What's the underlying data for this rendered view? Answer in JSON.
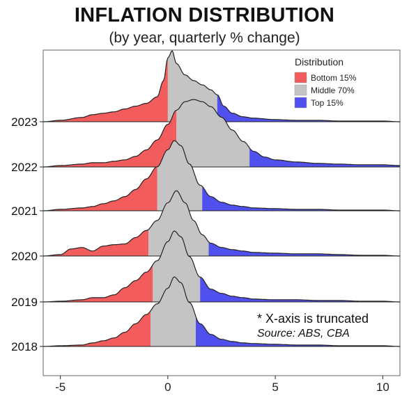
{
  "header": {
    "title": "INFLATION DISTRIBUTION",
    "subtitle": "(by year, quarterly % change)"
  },
  "notes": {
    "truncation": "*  X-axis is truncated",
    "source": "Source: ABS, CBA"
  },
  "colors": {
    "bottom": "#f25c5c",
    "middle": "#c4c4c4",
    "top": "#5050ee",
    "outline": "#222222",
    "frame": "#666666"
  },
  "chart_data": {
    "type": "area",
    "subtype": "ridgeline-density",
    "title": "INFLATION DISTRIBUTION",
    "subtitle": "(by year, quarterly % change)",
    "xlabel": "",
    "ylabel": "",
    "xlim": [
      -5.8,
      10.8
    ],
    "xticks": [
      -5,
      0,
      5,
      10
    ],
    "grid": false,
    "legend": {
      "title": "Distribution",
      "position": "top-right",
      "items": [
        {
          "label": "Bottom 15%",
          "color": "#f25c5c"
        },
        {
          "label": "Middle 70%",
          "color": "#c4c4c4"
        },
        {
          "label": "Top 15%",
          "color": "#5050ee"
        }
      ]
    },
    "series": [
      {
        "name": "2018",
        "bottom_15_cutoff": -0.8,
        "top_15_cutoff": 1.3,
        "x": [
          -5.8,
          -5,
          -4,
          -3.5,
          -3,
          -2.5,
          -2,
          -1.5,
          -1,
          -0.5,
          0,
          0.3,
          0.6,
          1,
          1.5,
          2,
          2.5,
          3,
          3.5,
          4,
          5,
          6,
          7,
          8,
          9,
          10,
          10.8
        ],
        "density": [
          0,
          0.01,
          0.02,
          0.05,
          0.08,
          0.12,
          0.2,
          0.32,
          0.45,
          0.6,
          0.82,
          0.98,
          0.9,
          0.62,
          0.32,
          0.17,
          0.1,
          0.07,
          0.05,
          0.04,
          0.03,
          0.02,
          0.02,
          0.01,
          0.01,
          0.01,
          0
        ]
      },
      {
        "name": "2019",
        "bottom_15_cutoff": -0.7,
        "top_15_cutoff": 1.5,
        "x": [
          -5.8,
          -5,
          -4,
          -3.5,
          -3,
          -2.5,
          -2,
          -1.5,
          -1,
          -0.5,
          0,
          0.3,
          0.6,
          1,
          1.5,
          2,
          2.5,
          3,
          3.5,
          4,
          5,
          6,
          7,
          8,
          9,
          10,
          10.8
        ],
        "density": [
          0,
          0.01,
          0.03,
          0.06,
          0.06,
          0.1,
          0.2,
          0.3,
          0.42,
          0.58,
          0.85,
          1.0,
          0.92,
          0.64,
          0.35,
          0.18,
          0.12,
          0.08,
          0.06,
          0.04,
          0.03,
          0.03,
          0.02,
          0.02,
          0.01,
          0.01,
          0
        ]
      },
      {
        "name": "2020",
        "bottom_15_cutoff": -0.9,
        "top_15_cutoff": 1.9,
        "x": [
          -5.8,
          -5,
          -4.5,
          -4,
          -3.5,
          -3,
          -2.5,
          -2,
          -1.5,
          -1,
          -0.5,
          0,
          0.4,
          0.8,
          1.2,
          1.6,
          2,
          2.5,
          3,
          3.5,
          4,
          5,
          6,
          7,
          8,
          9,
          10,
          10.8
        ],
        "density": [
          0,
          0.02,
          0.1,
          0.12,
          0.07,
          0.14,
          0.16,
          0.17,
          0.26,
          0.36,
          0.5,
          0.75,
          0.92,
          0.75,
          0.5,
          0.3,
          0.18,
          0.12,
          0.09,
          0.07,
          0.05,
          0.04,
          0.03,
          0.03,
          0.02,
          0.01,
          0.01,
          0
        ]
      },
      {
        "name": "2021",
        "bottom_15_cutoff": -0.5,
        "top_15_cutoff": 1.6,
        "x": [
          -5.8,
          -5,
          -4,
          -3.5,
          -3,
          -2.5,
          -2,
          -1.5,
          -1,
          -0.5,
          0,
          0.3,
          0.6,
          1,
          1.5,
          2,
          2.5,
          3,
          3.5,
          4,
          5,
          6,
          7,
          8,
          9,
          10,
          10.8
        ],
        "density": [
          0,
          0.02,
          0.04,
          0.06,
          0.1,
          0.14,
          0.2,
          0.3,
          0.45,
          0.62,
          0.86,
          0.99,
          0.92,
          0.66,
          0.36,
          0.2,
          0.12,
          0.08,
          0.06,
          0.04,
          0.03,
          0.02,
          0.02,
          0.01,
          0.01,
          0.01,
          0
        ]
      },
      {
        "name": "2022",
        "bottom_15_cutoff": 0.4,
        "top_15_cutoff": 3.8,
        "x": [
          -5.8,
          -5,
          -4,
          -3.5,
          -3,
          -2.5,
          -2,
          -1.5,
          -1,
          -0.5,
          0,
          0.4,
          0.8,
          1.2,
          1.6,
          2,
          2.5,
          3,
          3.5,
          4,
          4.5,
          5,
          6,
          7,
          8,
          9,
          10,
          10.8
        ],
        "density": [
          0,
          0.02,
          0.04,
          0.06,
          0.06,
          0.08,
          0.1,
          0.15,
          0.24,
          0.38,
          0.6,
          0.8,
          0.92,
          0.95,
          0.92,
          0.85,
          0.7,
          0.52,
          0.36,
          0.22,
          0.14,
          0.1,
          0.07,
          0.05,
          0.04,
          0.03,
          0.03,
          0.02
        ]
      },
      {
        "name": "2023",
        "bottom_15_cutoff": 0.0,
        "top_15_cutoff": 2.3,
        "x": [
          -5.8,
          -5,
          -4,
          -3.5,
          -3,
          -2.5,
          -2,
          -1.5,
          -1,
          -0.5,
          -0.2,
          0,
          0.2,
          0.4,
          0.8,
          1.2,
          1.6,
          2,
          2.3,
          2.6,
          3,
          3.5,
          4,
          5,
          6,
          7,
          8,
          9,
          10,
          10.8
        ],
        "density": [
          0,
          0.02,
          0.06,
          0.1,
          0.12,
          0.14,
          0.18,
          0.22,
          0.26,
          0.35,
          0.58,
          0.9,
          1.0,
          0.82,
          0.66,
          0.58,
          0.52,
          0.45,
          0.38,
          0.22,
          0.12,
          0.07,
          0.05,
          0.03,
          0.02,
          0.02,
          0.01,
          0.01,
          0.01,
          0
        ]
      }
    ]
  }
}
